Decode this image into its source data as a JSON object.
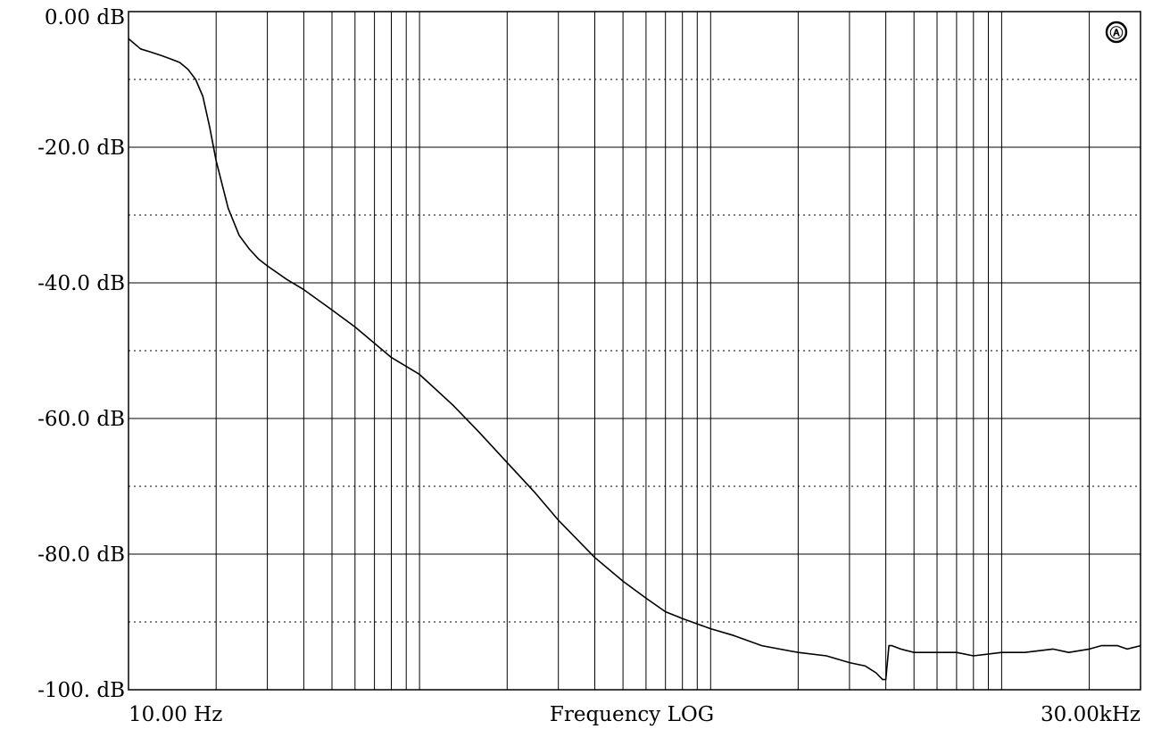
{
  "chart_data": {
    "type": "line",
    "title": "",
    "xlabel": "Frequency LOG",
    "ylabel": "",
    "x_scale": "log",
    "xlim": [
      10,
      30000
    ],
    "ylim": [
      -100,
      0
    ],
    "grid": true,
    "x_tick_labels": [
      "10.00 Hz",
      "30.00kHz"
    ],
    "y_ticks": [
      0,
      -20,
      -40,
      -60,
      -80,
      -100
    ],
    "y_tick_labels": [
      "0.00 dB",
      "-20.0 dB",
      "-40.0 dB",
      "-60.0 dB",
      "-80.0 dB",
      "-100. dB"
    ],
    "series": [
      {
        "x": [
          10,
          11,
          12,
          13,
          14,
          15,
          16,
          17,
          18,
          19,
          20,
          22,
          24,
          26,
          28,
          30,
          35,
          40,
          50,
          60,
          80,
          100,
          130,
          160,
          200,
          250,
          300,
          400,
          500,
          600,
          700,
          800,
          1000,
          1200,
          1500,
          2000,
          2500,
          3000,
          3400,
          3700,
          3900,
          4000,
          4100,
          4200,
          4500,
          5000,
          6000,
          7000,
          8000,
          10000,
          12000,
          15000,
          17000,
          20000,
          22000,
          25000,
          27000,
          30000
        ],
        "y": [
          -4,
          -5.5,
          -6,
          -6.5,
          -7,
          -7.5,
          -8.5,
          -10,
          -12.5,
          -17,
          -22,
          -29,
          -33,
          -35,
          -36.5,
          -37.5,
          -39.5,
          -41,
          -44,
          -46.5,
          -51,
          -53.5,
          -58,
          -62,
          -66.5,
          -71,
          -75,
          -80.5,
          -84,
          -86.5,
          -88.5,
          -89.5,
          -91,
          -92,
          -93.5,
          -94.5,
          -95,
          -96,
          -96.5,
          -97.5,
          -98.5,
          -98.5,
          -93.5,
          -93.5,
          -94,
          -94.5,
          -94.5,
          -94.5,
          -95,
          -94.5,
          -94.5,
          -94,
          -94.5,
          -94,
          -93.5,
          -93.5,
          -94,
          -93.5
        ]
      }
    ]
  },
  "badge": {
    "symbol": "Ⓐ",
    "icon": "audio-precision-logo-icon"
  }
}
